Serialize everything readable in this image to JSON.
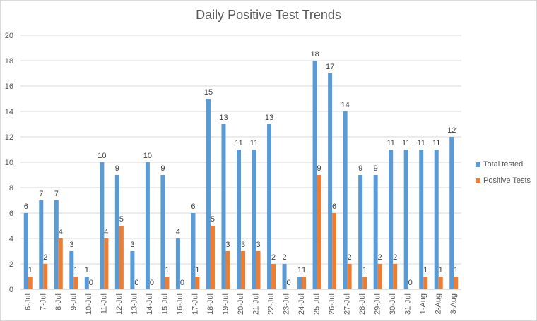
{
  "chart_data": {
    "type": "bar",
    "title": "Daily Positive Test Trends",
    "xlabel": "",
    "ylabel": "",
    "ylim": [
      0,
      20
    ],
    "ytick_step": 2,
    "grid": true,
    "legend_position": "right",
    "categories": [
      "6-Jul",
      "7-Jul",
      "8-Jul",
      "9-Jul",
      "10-Jul",
      "11-Jul",
      "12-Jul",
      "13-Jul",
      "14-Jul",
      "15-Jul",
      "16-Jul",
      "17-Jul",
      "18-Jul",
      "19-Jul",
      "20-Jul",
      "21-Jul",
      "22-Jul",
      "23-Jul",
      "24-Jul",
      "25-Jul",
      "26-Jul",
      "27-Jul",
      "28-Jul",
      "29-Jul",
      "30-Jul",
      "31-Jul",
      "1-Aug",
      "2-Aug",
      "3-Aug"
    ],
    "series": [
      {
        "name": "Total tested",
        "color": "#5b9bd5",
        "values": [
          6,
          7,
          7,
          3,
          1,
          10,
          9,
          3,
          10,
          9,
          4,
          6,
          15,
          13,
          11,
          11,
          13,
          2,
          1,
          18,
          17,
          14,
          9,
          9,
          11,
          11,
          11,
          11,
          12
        ]
      },
      {
        "name": "Positive Tests",
        "color": "#ed7d31",
        "values": [
          1,
          2,
          4,
          1,
          0,
          4,
          5,
          0,
          0,
          1,
          0,
          1,
          5,
          3,
          3,
          3,
          2,
          0,
          1,
          9,
          6,
          2,
          1,
          2,
          2,
          0,
          1,
          1,
          1
        ]
      }
    ]
  }
}
